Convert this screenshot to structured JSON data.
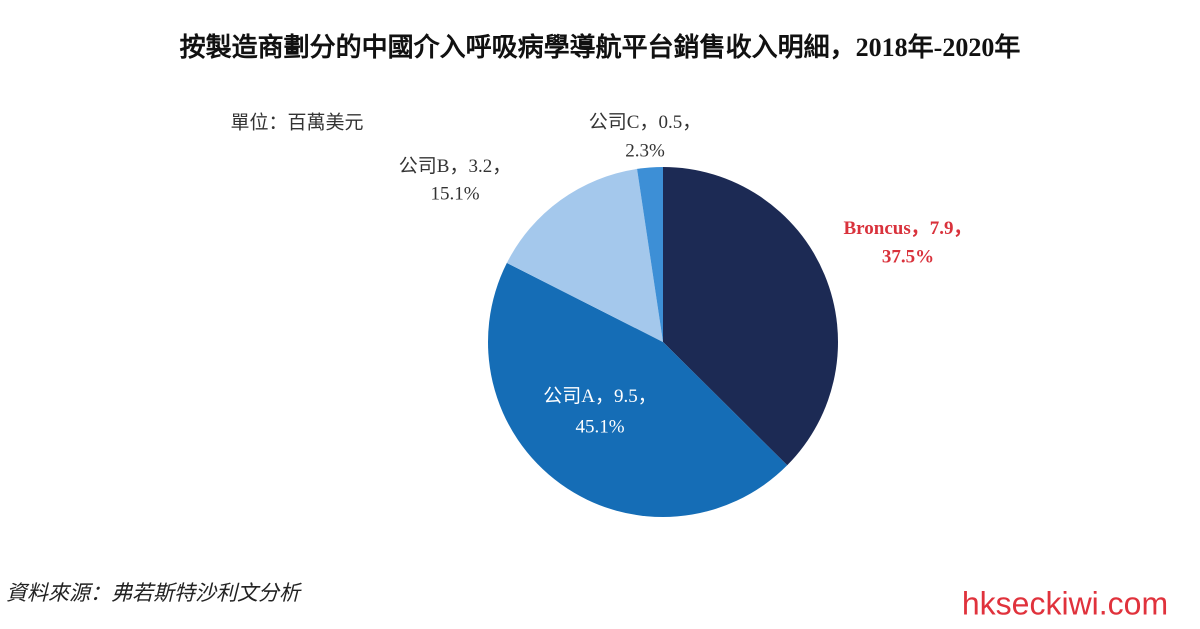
{
  "chart_data": {
    "type": "pie",
    "title": "按製造商劃分的中國介入呼吸病學導航平台銷售收入明細，2018年-2020年",
    "unit": "單位：百萬美元",
    "source": "資料來源：弗若斯特沙利文分析",
    "watermark": "hkseckiwi.com",
    "label_separator": "，",
    "categories": [
      "Broncus",
      "公司A",
      "公司B",
      "公司C"
    ],
    "values": [
      7.9,
      9.5,
      3.2,
      0.5
    ],
    "percent_labels": [
      "37.5%",
      "45.1%",
      "15.1%",
      "2.3%"
    ],
    "colors": [
      "#1c2a54",
      "#156db6",
      "#a4c8ec",
      "#3d8fd6"
    ],
    "label_colors": [
      "#d9323c",
      "#ffffff",
      "#333333",
      "#333333"
    ]
  }
}
